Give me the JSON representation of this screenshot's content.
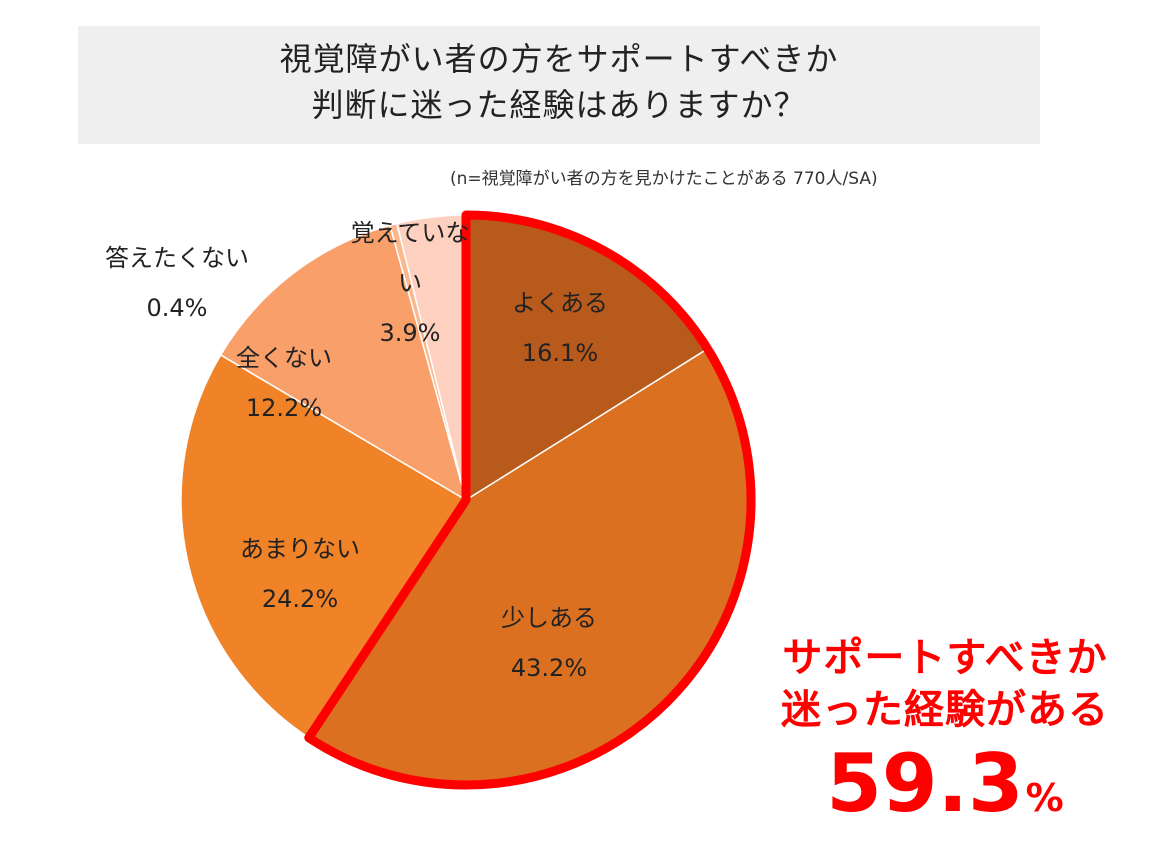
{
  "header": {
    "title_line1": "視覚障がい者の方をサポートすべきか",
    "title_line2": "判断に迷った経験はありますか？",
    "sample_note": "(n=視覚障がい者の方を見かけたことがある 770人/SA)"
  },
  "chart_data": {
    "type": "pie",
    "start": "12 o'clock, clockwise",
    "slices": [
      {
        "label": "よくある",
        "value": 16.1,
        "value_label": "16.1%",
        "color": "#b85a1c"
      },
      {
        "label": "少しある",
        "value": 43.2,
        "value_label": "43.2%",
        "color": "#da7020"
      },
      {
        "label": "あまりない",
        "value": 24.2,
        "value_label": "24.2%",
        "color": "#f08228"
      },
      {
        "label": "全くない",
        "value": 12.2,
        "value_label": "12.2%",
        "color": "#f9a06a"
      },
      {
        "label": "答えたくない",
        "value": 0.4,
        "value_label": "0.4%",
        "color": "#fbb88e"
      },
      {
        "label": "覚えていない",
        "value": 3.9,
        "value_label": "3.9%",
        "color": "#fdd0c0"
      }
    ],
    "highlight": {
      "slices": [
        "よくある",
        "少しある"
      ],
      "outline_color": "#ff0000"
    }
  },
  "callout": {
    "line1": "サポートすべきか",
    "line2": "迷った経験がある",
    "value": "59.3",
    "unit": "%",
    "color": "#ff0000"
  }
}
